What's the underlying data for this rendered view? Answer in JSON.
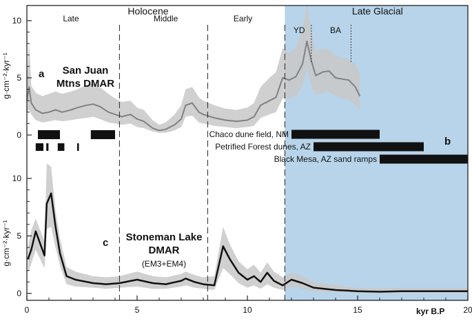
{
  "chart_data": {
    "type": "line",
    "x_range": [
      0,
      20
    ],
    "x_ticks": [
      0,
      5,
      10,
      15,
      20
    ],
    "x_axis_label": "kyr B.P",
    "late_glacial_shade": {
      "start": 11.7,
      "end": 20,
      "color": "#b8d4ea"
    },
    "period_boundaries": [
      4.2,
      8.2,
      11.7
    ],
    "ba_yd_boundaries": [
      12.9,
      14.7
    ],
    "top_band_labels": [
      {
        "text": "Holocene",
        "x": 5.5
      },
      {
        "text": "Late Glacial",
        "x": 15.9
      }
    ],
    "epoch_labels": [
      {
        "text": "Late",
        "x": 2.0
      },
      {
        "text": "Middle",
        "x": 6.3
      },
      {
        "text": "Early",
        "x": 9.8
      },
      {
        "text": "YD",
        "x": 12.35
      },
      {
        "text": "BA",
        "x": 14.0
      }
    ],
    "panel_a": {
      "panel_letter": "a",
      "title_lines": [
        "San Juan",
        "Mtns DMAR"
      ],
      "y_ticks": [
        0,
        5,
        10
      ],
      "y_axis_label": "g·cm⁻²·kyr⁻¹",
      "line_color": "#808080",
      "band_color": "#c8c8c8",
      "x": [
        0.0,
        0.1,
        0.2,
        0.4,
        0.7,
        1.0,
        1.3,
        1.6,
        2.0,
        2.3,
        2.7,
        3.0,
        3.3,
        3.7,
        4.0,
        4.3,
        4.7,
        5.0,
        5.3,
        5.7,
        6.0,
        6.3,
        6.7,
        7.0,
        7.2,
        7.5,
        7.8,
        8.0,
        8.5,
        9.0,
        9.5,
        10.0,
        10.3,
        10.6,
        11.0,
        11.3,
        11.6,
        11.9,
        12.2,
        12.5,
        12.7,
        12.9,
        13.1,
        13.4,
        13.7,
        14.0,
        14.3,
        14.6,
        14.9,
        15.1
      ],
      "y": [
        3.0,
        4.2,
        2.8,
        2.2,
        1.9,
        2.0,
        2.2,
        2.0,
        2.2,
        2.4,
        2.6,
        2.7,
        2.5,
        2.0,
        1.8,
        1.6,
        1.8,
        1.4,
        1.2,
        0.6,
        0.4,
        0.5,
        0.9,
        1.4,
        2.6,
        2.8,
        2.0,
        1.8,
        1.5,
        1.3,
        1.2,
        1.3,
        1.6,
        2.6,
        3.0,
        3.3,
        5.0,
        4.8,
        5.1,
        6.2,
        8.2,
        6.5,
        5.2,
        5.5,
        5.6,
        5.0,
        4.9,
        4.8,
        4.2,
        3.4
      ],
      "upper": [
        4.8,
        8.2,
        4.3,
        3.7,
        3.4,
        3.6,
        3.8,
        3.6,
        3.8,
        4.0,
        4.4,
        4.5,
        4.2,
        3.6,
        3.2,
        2.9,
        3.0,
        2.4,
        2.2,
        1.3,
        0.9,
        1.1,
        1.8,
        2.6,
        4.0,
        4.2,
        3.3,
        3.0,
        2.6,
        2.3,
        2.2,
        2.4,
        2.8,
        4.2,
        5.0,
        5.5,
        7.6,
        7.2,
        7.6,
        9.2,
        11.5,
        9.0,
        7.4,
        7.5,
        7.5,
        6.9,
        6.8,
        6.6,
        6.2,
        5.4
      ],
      "lower": [
        2.0,
        2.2,
        1.8,
        1.3,
        1.1,
        1.2,
        1.3,
        1.2,
        1.3,
        1.4,
        1.5,
        1.6,
        1.4,
        1.1,
        1.0,
        0.9,
        1.0,
        0.7,
        0.6,
        0.3,
        0.2,
        0.2,
        0.4,
        0.7,
        1.6,
        1.7,
        1.1,
        1.0,
        0.8,
        0.7,
        0.6,
        0.7,
        0.8,
        1.5,
        1.8,
        2.0,
        3.2,
        3.2,
        3.4,
        4.3,
        5.8,
        4.3,
        3.5,
        3.7,
        3.8,
        3.4,
        3.2,
        3.1,
        2.6,
        2.2
      ],
      "black_bars": [
        {
          "start": 0.5,
          "end": 1.5,
          "row": "thick"
        },
        {
          "start": 2.9,
          "end": 4.0,
          "row": "thick"
        },
        {
          "start": 0.4,
          "end": 0.75,
          "row": "thin"
        },
        {
          "start": 0.88,
          "end": 0.98,
          "row": "thin"
        },
        {
          "start": 1.4,
          "end": 1.7,
          "row": "thin"
        },
        {
          "start": 2.28,
          "end": 2.36,
          "row": "thin"
        }
      ]
    },
    "panel_b": {
      "panel_letter": "b",
      "records": [
        {
          "label": "Chaco dune field, NM",
          "start": 12.0,
          "end": 16.0
        },
        {
          "label": "Petrified Forest dunes, AZ",
          "start": 13.0,
          "end": 18.0
        },
        {
          "label": "Black Mesa, AZ sand ramps",
          "start": 16.0,
          "end": 20.0
        }
      ]
    },
    "panel_c": {
      "panel_letter": "c",
      "title_lines": [
        "Stoneman Lake",
        "DMAR"
      ],
      "subtitle": "(EM3+EM4)",
      "y_ticks": [
        0,
        5,
        10
      ],
      "y_axis_label": "g·cm⁻²·kyr⁻¹",
      "line_color": "#111111",
      "band_color": "#c8c8c8",
      "x": [
        0.05,
        0.2,
        0.4,
        0.8,
        0.9,
        1.1,
        1.3,
        1.5,
        1.8,
        2.2,
        3.0,
        3.6,
        4.2,
        5.0,
        5.7,
        6.3,
        7.0,
        7.2,
        7.6,
        8.0,
        8.5,
        8.9,
        9.2,
        9.6,
        10.0,
        10.3,
        10.6,
        10.9,
        11.2,
        11.6,
        12.0,
        12.5,
        13.0,
        14.0,
        15.0,
        16.0,
        17.0,
        18.0,
        19.0,
        20.0
      ],
      "y": [
        3.0,
        3.8,
        5.4,
        3.3,
        7.8,
        8.7,
        5.8,
        3.5,
        1.5,
        1.2,
        0.9,
        0.8,
        0.9,
        1.2,
        0.9,
        0.8,
        1.1,
        1.3,
        1.0,
        0.8,
        0.7,
        4.1,
        3.0,
        1.8,
        1.2,
        1.5,
        1.0,
        1.8,
        1.1,
        0.7,
        1.2,
        0.9,
        0.5,
        0.3,
        0.2,
        0.15,
        0.2,
        0.2,
        0.2,
        0.2
      ],
      "upper": [
        4.0,
        5.5,
        6.5,
        4.5,
        11.3,
        11.0,
        7.2,
        4.8,
        2.3,
        1.9,
        1.5,
        1.4,
        1.5,
        1.9,
        1.5,
        1.4,
        1.7,
        1.9,
        1.6,
        1.4,
        1.5,
        5.8,
        4.3,
        2.8,
        2.1,
        2.5,
        1.8,
        2.7,
        1.9,
        1.4,
        1.8,
        1.5,
        1.0,
        0.7,
        0.5,
        0.45,
        0.5,
        0.5,
        0.5,
        0.5
      ],
      "lower": [
        1.8,
        2.6,
        3.8,
        2.2,
        5.6,
        5.8,
        4.0,
        2.4,
        0.8,
        0.6,
        0.5,
        0.4,
        0.5,
        0.6,
        0.4,
        0.4,
        0.6,
        0.7,
        0.5,
        0.4,
        0.3,
        2.2,
        1.7,
        0.9,
        0.5,
        0.7,
        0.4,
        0.8,
        0.5,
        0.3,
        0.6,
        0.4,
        0.2,
        0.1,
        0.05,
        0.02,
        0.05,
        0.05,
        0.05,
        0.05
      ]
    }
  }
}
